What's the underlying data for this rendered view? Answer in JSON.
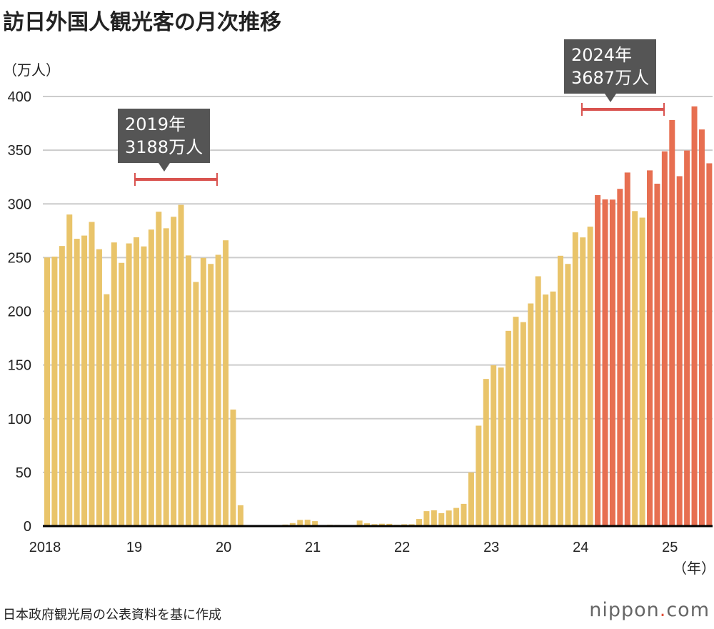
{
  "title": "訪日外国人観光客の月次推移",
  "unit_label": "（万人）",
  "source": "日本政府観光局の公表資料を基に作成",
  "logo": {
    "name": "nippon",
    "dot": ".",
    "suffix": "com"
  },
  "annotations": [
    {
      "year": "2019年",
      "total": "3188万人"
    },
    {
      "year": "2024年",
      "total": "3687万人"
    }
  ],
  "colors": {
    "base": "#e9c46a",
    "highlight": "#e76f51",
    "bracket": "#d9534f",
    "grid": "#cccccc"
  },
  "chart_data": {
    "type": "bar",
    "title": "訪日外国人観光客の月次推移",
    "ylabel": "（万人）",
    "xlabel": "（年）",
    "ylim": [
      0,
      400
    ],
    "yticks": [
      0,
      50,
      100,
      150,
      200,
      250,
      300,
      350,
      400
    ],
    "grid": true,
    "xtick_labels": [
      "2018",
      "19",
      "20",
      "21",
      "22",
      "23",
      "24",
      "25"
    ],
    "start": "2018-01",
    "end": "2025-06",
    "values": [
      250.1,
      250.9,
      260.8,
      290.1,
      267.5,
      270.5,
      283.2,
      257.8,
      215.9,
      264.1,
      245.1,
      263.2,
      268.9,
      260.4,
      276.1,
      292.7,
      277.3,
      288.0,
      299.1,
      252.0,
      227.3,
      249.7,
      244.1,
      252.6,
      266.1,
      108.5,
      19.4,
      0.3,
      0.2,
      0.3,
      0.4,
      0.9,
      1.4,
      2.8,
      5.7,
      5.9,
      4.6,
      0.7,
      1.2,
      1.1,
      1.0,
      1.0,
      5.1,
      2.6,
      1.8,
      2.2,
      2.1,
      1.2,
      1.7,
      1.7,
      6.6,
      13.9,
      14.7,
      12.0,
      14.5,
      16.9,
      20.7,
      49.9,
      93.5,
      137.0,
      149.7,
      147.6,
      181.8,
      194.9,
      189.9,
      207.3,
      232.6,
      215.6,
      218.4,
      251.7,
      244.1,
      273.5,
      268.8,
      278.8,
      308.2,
      304.2,
      304.0,
      314.0,
      329.2,
      293.3,
      287.2,
      331.2,
      318.8,
      348.9,
      378.1,
      325.8,
      349.7,
      390.8,
      369.3,
      337.8
    ]
  }
}
